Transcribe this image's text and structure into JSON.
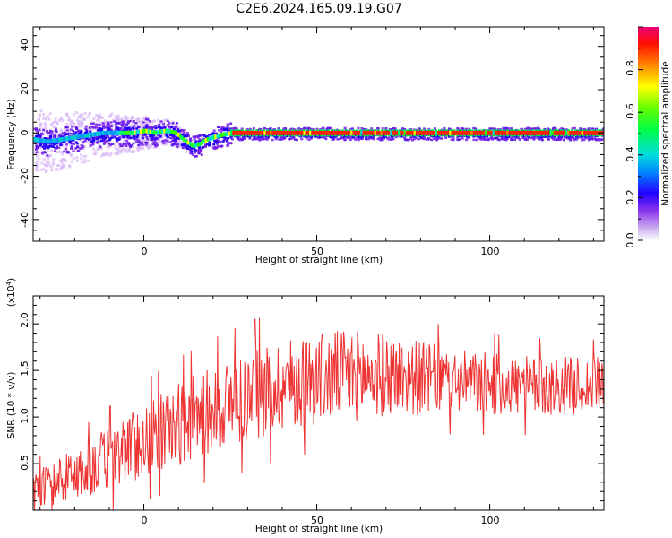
{
  "title": "C2E6.2024.165.09.19.G07",
  "chart_data": [
    {
      "type": "heatmap",
      "xlabel": "Height of straight line (km)",
      "ylabel": "Frequency (Hz)",
      "xlim": [
        -32,
        133
      ],
      "ylim": [
        -50,
        49
      ],
      "xticks": [
        "0",
        "50",
        "100"
      ],
      "yticks": [
        "40",
        "20",
        "0",
        "-20",
        "-40"
      ],
      "ridge": [
        [
          -32,
          -3
        ],
        [
          -28,
          -4
        ],
        [
          -24,
          -3
        ],
        [
          -20,
          -2
        ],
        [
          -16,
          -1
        ],
        [
          -12,
          0
        ],
        [
          -9,
          0
        ],
        [
          -6,
          0
        ],
        [
          -3,
          0
        ],
        [
          0,
          1
        ],
        [
          3,
          0
        ],
        [
          6,
          1
        ],
        [
          9,
          0
        ],
        [
          12,
          -4
        ],
        [
          14,
          -6
        ],
        [
          16,
          -5
        ],
        [
          18,
          -3
        ],
        [
          20,
          -2
        ],
        [
          22,
          -1
        ],
        [
          25,
          0
        ],
        [
          30,
          0
        ],
        [
          133,
          0
        ]
      ],
      "colorbar": {
        "label": "Normalized spectral amplitude",
        "ticks": [
          "0.0",
          "0.2",
          "0.4",
          "0.6",
          "0.8"
        ],
        "range": [
          0,
          1
        ]
      }
    },
    {
      "type": "line",
      "xlabel": "Height of straight line (km)",
      "ylabel": "SNR (10 * v/v)",
      "multiplier": "(x10",
      "multiplier_exp": "4",
      "multiplier_close": ")",
      "xlim": [
        -32,
        133
      ],
      "ylim": [
        0.0,
        2.3
      ],
      "xticks": [
        "0",
        "50",
        "100"
      ],
      "yticks": [
        "2.0",
        "1.5",
        "1.0",
        "0.5"
      ],
      "color": "#ee3333",
      "trend": [
        [
          -32,
          0.22
        ],
        [
          -20,
          0.38
        ],
        [
          -10,
          0.55
        ],
        [
          0,
          0.75
        ],
        [
          10,
          0.92
        ],
        [
          20,
          1.08
        ],
        [
          30,
          1.22
        ],
        [
          40,
          1.35
        ],
        [
          50,
          1.42
        ],
        [
          60,
          1.45
        ],
        [
          70,
          1.45
        ],
        [
          80,
          1.42
        ],
        [
          90,
          1.38
        ],
        [
          100,
          1.35
        ],
        [
          110,
          1.33
        ],
        [
          120,
          1.33
        ],
        [
          133,
          1.35
        ]
      ],
      "amplitude": [
        [
          -32,
          0.2
        ],
        [
          -10,
          0.35
        ],
        [
          10,
          0.45
        ],
        [
          30,
          0.5
        ],
        [
          60,
          0.5
        ],
        [
          90,
          0.35
        ],
        [
          133,
          0.3
        ]
      ]
    }
  ]
}
